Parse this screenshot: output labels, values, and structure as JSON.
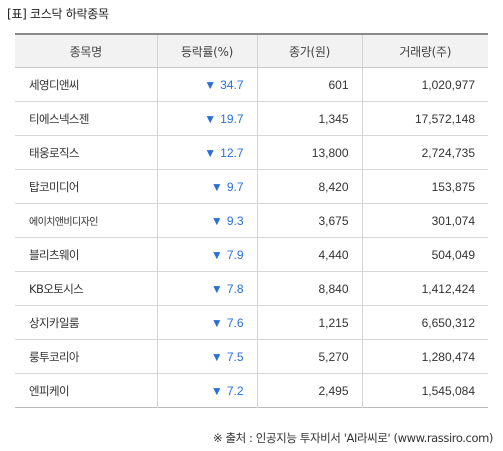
{
  "title": "[표] 코스닥 하락종목",
  "columns": [
    "종목명",
    "등락률(%)",
    "종가(원)",
    "거래량(주)"
  ],
  "down_arrow": "▼",
  "rows": [
    {
      "name": "세영디앤씨",
      "change": "34.7",
      "close": "601",
      "volume": "1,020,977"
    },
    {
      "name": "티에스넥스젠",
      "change": "19.7",
      "close": "1,345",
      "volume": "17,572,148"
    },
    {
      "name": "태웅로직스",
      "change": "12.7",
      "close": "13,800",
      "volume": "2,724,735"
    },
    {
      "name": "탑코미디어",
      "change": "9.7",
      "close": "8,420",
      "volume": "153,875"
    },
    {
      "name": "에이치앤비디자인",
      "change": "9.3",
      "close": "3,675",
      "volume": "301,074"
    },
    {
      "name": "블리츠웨이",
      "change": "7.9",
      "close": "4,440",
      "volume": "504,049"
    },
    {
      "name": "KB오토시스",
      "change": "7.8",
      "close": "8,840",
      "volume": "1,412,424"
    },
    {
      "name": "상지카일룸",
      "change": "7.6",
      "close": "1,215",
      "volume": "6,650,312"
    },
    {
      "name": "룽투코리아",
      "change": "7.5",
      "close": "5,270",
      "volume": "1,280,474"
    },
    {
      "name": "엔피케이",
      "change": "7.2",
      "close": "2,495",
      "volume": "1,545,084"
    }
  ],
  "source": "※ 출처 : 인공지능 투자비서 'AI라씨로' (www.rassiro.com)",
  "colors": {
    "down": "#2a6fd8",
    "header_bg": "#f2f2f2"
  }
}
